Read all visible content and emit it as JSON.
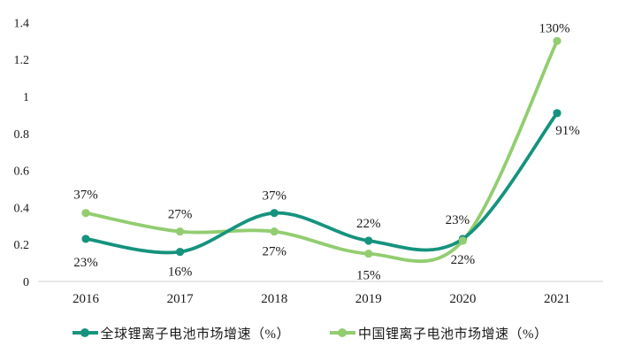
{
  "chart_data": {
    "type": "line",
    "title": "",
    "xlabel": "",
    "ylabel": "",
    "categories": [
      "2016",
      "2017",
      "2018",
      "2019",
      "2020",
      "2021"
    ],
    "series": [
      {
        "name": "全球锂离子电池市场增速（%）",
        "slug": "global",
        "color": "#15937E",
        "values": [
          0.23,
          0.16,
          0.37,
          0.22,
          0.23,
          0.91
        ],
        "point_labels": [
          "23%",
          "16%",
          "37%",
          "22%",
          "23%",
          "91%"
        ],
        "label_offsets": [
          [
            0,
            31
          ],
          [
            0,
            27
          ],
          [
            0,
            -15
          ],
          [
            0,
            -15
          ],
          [
            -6,
            -17
          ],
          [
            12,
            24
          ]
        ]
      },
      {
        "name": "中国锂离子电池市场增速（%）",
        "slug": "china",
        "color": "#92CD70",
        "values": [
          0.37,
          0.27,
          0.27,
          0.15,
          0.22,
          1.3
        ],
        "point_labels": [
          "37%",
          "27%",
          "27%",
          "15%",
          "22%",
          "130%"
        ],
        "label_offsets": [
          [
            0,
            -16
          ],
          [
            0,
            -15
          ],
          [
            0,
            27
          ],
          [
            0,
            29
          ],
          [
            0,
            26
          ],
          [
            -3,
            -10
          ]
        ]
      }
    ],
    "ylim": [
      0,
      1.4
    ],
    "ytick_labels": [
      "0",
      "0.2",
      "0.4",
      "0.6",
      "0.8",
      "1",
      "1.2",
      "1.4"
    ],
    "grid": false,
    "legend_position": "bottom",
    "axis_color": "#D9D9D9",
    "text_color": "#1A1A1A",
    "background": "#FFFFFF"
  }
}
